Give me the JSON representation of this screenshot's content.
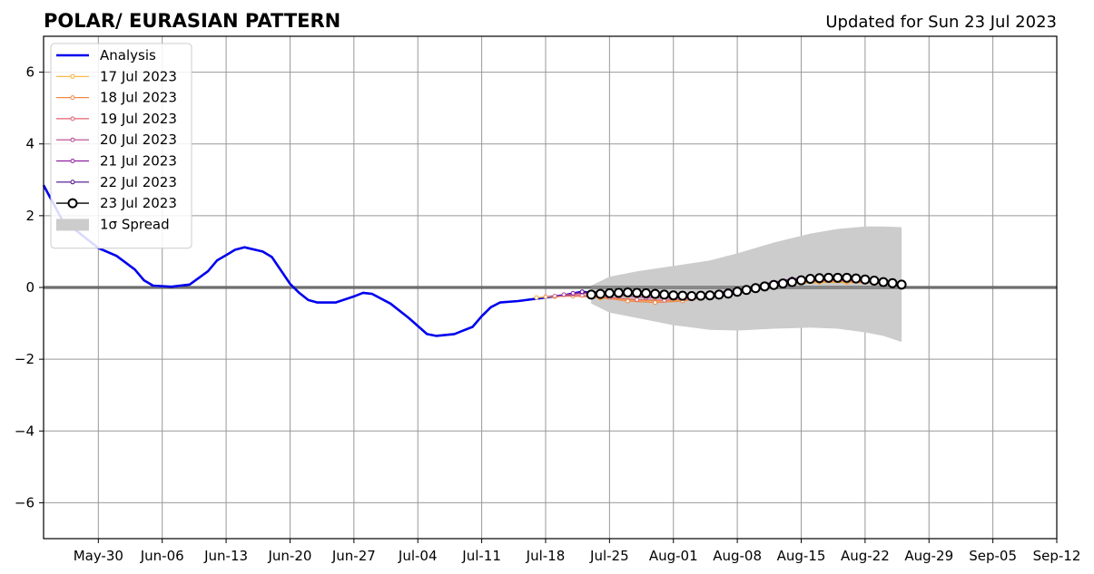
{
  "chart_data": {
    "type": "line",
    "title": "POLAR/ EURASIAN  PATTERN",
    "subtitle": "Updated for Sun 23 Jul 2023",
    "xlabel": "",
    "ylabel": "",
    "x_ticks": [
      "May-30",
      "Jun-06",
      "Jun-13",
      "Jun-20",
      "Jun-27",
      "Jul-04",
      "Jul-11",
      "Jul-18",
      "Jul-25",
      "Aug-01",
      "Aug-08",
      "Aug-15",
      "Aug-22",
      "Aug-29",
      "Sep-05",
      "Sep-12"
    ],
    "y_ticks": [
      -6,
      -4,
      -2,
      0,
      2,
      4,
      6
    ],
    "xlim": [
      "2023-05-24",
      "2023-09-12"
    ],
    "ylim": [
      -7,
      7
    ],
    "grid": true,
    "legend_position": "top-left",
    "series": [
      {
        "name": "Analysis",
        "color": "#0000ee",
        "style": "thick-line",
        "points": [
          [
            "2023-05-24",
            2.85
          ],
          [
            "2023-05-26",
            1.9
          ],
          [
            "2023-05-28",
            1.5
          ],
          [
            "2023-05-30",
            1.1
          ],
          [
            "2023-06-01",
            0.88
          ],
          [
            "2023-06-03",
            0.5
          ],
          [
            "2023-06-04",
            0.2
          ],
          [
            "2023-06-05",
            0.05
          ],
          [
            "2023-06-07",
            0.02
          ],
          [
            "2023-06-09",
            0.08
          ],
          [
            "2023-06-11",
            0.45
          ],
          [
            "2023-06-12",
            0.75
          ],
          [
            "2023-06-14",
            1.05
          ],
          [
            "2023-06-15",
            1.12
          ],
          [
            "2023-06-17",
            1.0
          ],
          [
            "2023-06-18",
            0.85
          ],
          [
            "2023-06-20",
            0.1
          ],
          [
            "2023-06-21",
            -0.15
          ],
          [
            "2023-06-22",
            -0.35
          ],
          [
            "2023-06-23",
            -0.42
          ],
          [
            "2023-06-25",
            -0.42
          ],
          [
            "2023-06-27",
            -0.25
          ],
          [
            "2023-06-28",
            -0.15
          ],
          [
            "2023-06-29",
            -0.18
          ],
          [
            "2023-07-01",
            -0.45
          ],
          [
            "2023-07-03",
            -0.85
          ],
          [
            "2023-07-05",
            -1.3
          ],
          [
            "2023-07-06",
            -1.35
          ],
          [
            "2023-07-08",
            -1.3
          ],
          [
            "2023-07-10",
            -1.1
          ],
          [
            "2023-07-11",
            -0.8
          ],
          [
            "2023-07-12",
            -0.55
          ],
          [
            "2023-07-13",
            -0.42
          ],
          [
            "2023-07-15",
            -0.38
          ],
          [
            "2023-07-18",
            -0.28
          ],
          [
            "2023-07-20",
            -0.22
          ],
          [
            "2023-07-22",
            -0.12
          ],
          [
            "2023-07-23",
            -0.15
          ]
        ]
      },
      {
        "name": "17 Jul 2023",
        "color": "#f5b13c",
        "style": "thin-line-dots",
        "points": [
          [
            "2023-07-17",
            -0.28
          ],
          [
            "2023-07-19",
            -0.26
          ],
          [
            "2023-07-21",
            -0.22
          ],
          [
            "2023-07-24",
            -0.3
          ],
          [
            "2023-07-27",
            -0.35
          ],
          [
            "2023-07-30",
            -0.38
          ],
          [
            "2023-08-02",
            -0.35
          ],
          [
            "2023-08-05",
            -0.25
          ],
          [
            "2023-08-08",
            -0.1
          ],
          [
            "2023-08-11",
            0.02
          ],
          [
            "2023-08-14",
            0.1
          ],
          [
            "2023-08-17",
            0.14
          ],
          [
            "2023-08-20",
            0.14
          ],
          [
            "2023-08-23",
            0.12
          ]
        ]
      },
      {
        "name": "18 Jul 2023",
        "color": "#ee8a4a",
        "style": "thin-line-dots",
        "points": [
          [
            "2023-07-18",
            -0.26
          ],
          [
            "2023-07-21",
            -0.24
          ],
          [
            "2023-07-24",
            -0.28
          ],
          [
            "2023-07-27",
            -0.38
          ],
          [
            "2023-07-30",
            -0.42
          ],
          [
            "2023-08-02",
            -0.38
          ],
          [
            "2023-08-05",
            -0.26
          ],
          [
            "2023-08-08",
            -0.1
          ],
          [
            "2023-08-11",
            0.04
          ],
          [
            "2023-08-14",
            0.12
          ],
          [
            "2023-08-17",
            0.16
          ],
          [
            "2023-08-20",
            0.16
          ],
          [
            "2023-08-23",
            0.12
          ],
          [
            "2023-08-24",
            0.1
          ]
        ]
      },
      {
        "name": "19 Jul 2023",
        "color": "#e06070",
        "style": "thin-line-dots",
        "points": [
          [
            "2023-07-19",
            -0.24
          ],
          [
            "2023-07-22",
            -0.22
          ],
          [
            "2023-07-25",
            -0.28
          ],
          [
            "2023-07-28",
            -0.34
          ],
          [
            "2023-07-31",
            -0.36
          ],
          [
            "2023-08-03",
            -0.32
          ],
          [
            "2023-08-06",
            -0.2
          ],
          [
            "2023-08-09",
            -0.06
          ],
          [
            "2023-08-12",
            0.08
          ],
          [
            "2023-08-15",
            0.16
          ],
          [
            "2023-08-18",
            0.2
          ],
          [
            "2023-08-21",
            0.18
          ],
          [
            "2023-08-24",
            0.12
          ],
          [
            "2023-08-25",
            0.1
          ]
        ]
      },
      {
        "name": "20 Jul 2023",
        "color": "#b8448a",
        "style": "thin-line-dots",
        "points": [
          [
            "2023-07-20",
            -0.2
          ],
          [
            "2023-07-23",
            -0.16
          ],
          [
            "2023-07-26",
            -0.22
          ],
          [
            "2023-07-29",
            -0.28
          ],
          [
            "2023-08-01",
            -0.3
          ],
          [
            "2023-08-04",
            -0.26
          ],
          [
            "2023-08-07",
            -0.16
          ],
          [
            "2023-08-10",
            0.0
          ],
          [
            "2023-08-13",
            0.14
          ],
          [
            "2023-08-16",
            0.22
          ],
          [
            "2023-08-19",
            0.24
          ],
          [
            "2023-08-22",
            0.2
          ],
          [
            "2023-08-25",
            0.12
          ],
          [
            "2023-08-26",
            0.1
          ]
        ]
      },
      {
        "name": "21 Jul 2023",
        "color": "#8e1fa0",
        "style": "thin-line-dots",
        "points": [
          [
            "2023-07-21",
            -0.16
          ],
          [
            "2023-07-24",
            -0.12
          ],
          [
            "2023-07-27",
            -0.16
          ],
          [
            "2023-07-30",
            -0.2
          ],
          [
            "2023-08-02",
            -0.22
          ],
          [
            "2023-08-05",
            -0.18
          ],
          [
            "2023-08-08",
            -0.06
          ],
          [
            "2023-08-11",
            0.1
          ],
          [
            "2023-08-14",
            0.24
          ],
          [
            "2023-08-17",
            0.3
          ],
          [
            "2023-08-20",
            0.3
          ],
          [
            "2023-08-23",
            0.24
          ],
          [
            "2023-08-26",
            0.12
          ]
        ]
      },
      {
        "name": "22 Jul 2023",
        "color": "#4b0c8a",
        "style": "thin-line-dots",
        "points": [
          [
            "2023-07-22",
            -0.12
          ],
          [
            "2023-07-25",
            -0.14
          ],
          [
            "2023-07-28",
            -0.16
          ],
          [
            "2023-07-31",
            -0.2
          ],
          [
            "2023-08-03",
            -0.22
          ],
          [
            "2023-08-06",
            -0.18
          ],
          [
            "2023-08-09",
            -0.06
          ],
          [
            "2023-08-12",
            0.1
          ],
          [
            "2023-08-15",
            0.22
          ],
          [
            "2023-08-18",
            0.28
          ],
          [
            "2023-08-21",
            0.28
          ],
          [
            "2023-08-24",
            0.2
          ],
          [
            "2023-08-26",
            0.1
          ]
        ]
      },
      {
        "name": "23 Jul 2023",
        "color": "#000000",
        "style": "open-circles",
        "points": [
          [
            "2023-07-23",
            -0.2
          ],
          [
            "2023-07-24",
            -0.18
          ],
          [
            "2023-07-25",
            -0.16
          ],
          [
            "2023-07-26",
            -0.15
          ],
          [
            "2023-07-27",
            -0.14
          ],
          [
            "2023-07-28",
            -0.15
          ],
          [
            "2023-07-29",
            -0.16
          ],
          [
            "2023-07-30",
            -0.18
          ],
          [
            "2023-07-31",
            -0.2
          ],
          [
            "2023-08-01",
            -0.22
          ],
          [
            "2023-08-02",
            -0.23
          ],
          [
            "2023-08-03",
            -0.24
          ],
          [
            "2023-08-04",
            -0.23
          ],
          [
            "2023-08-05",
            -0.22
          ],
          [
            "2023-08-06",
            -0.2
          ],
          [
            "2023-08-07",
            -0.17
          ],
          [
            "2023-08-08",
            -0.12
          ],
          [
            "2023-08-09",
            -0.07
          ],
          [
            "2023-08-10",
            -0.02
          ],
          [
            "2023-08-11",
            0.03
          ],
          [
            "2023-08-12",
            0.07
          ],
          [
            "2023-08-13",
            0.11
          ],
          [
            "2023-08-14",
            0.15
          ],
          [
            "2023-08-15",
            0.2
          ],
          [
            "2023-08-16",
            0.24
          ],
          [
            "2023-08-17",
            0.26
          ],
          [
            "2023-08-18",
            0.27
          ],
          [
            "2023-08-19",
            0.27
          ],
          [
            "2023-08-20",
            0.27
          ],
          [
            "2023-08-21",
            0.25
          ],
          [
            "2023-08-22",
            0.22
          ],
          [
            "2023-08-23",
            0.19
          ],
          [
            "2023-08-24",
            0.15
          ],
          [
            "2023-08-25",
            0.12
          ],
          [
            "2023-08-26",
            0.08
          ]
        ]
      }
    ],
    "spread": {
      "name": "1σ Spread",
      "color": "#cccccc",
      "points": [
        [
          "2023-07-23",
          -0.45,
          0.05
        ],
        [
          "2023-07-25",
          -0.7,
          0.3
        ],
        [
          "2023-07-28",
          -0.85,
          0.45
        ],
        [
          "2023-08-01",
          -1.05,
          0.6
        ],
        [
          "2023-08-05",
          -1.18,
          0.75
        ],
        [
          "2023-08-08",
          -1.2,
          0.95
        ],
        [
          "2023-08-12",
          -1.15,
          1.25
        ],
        [
          "2023-08-16",
          -1.12,
          1.5
        ],
        [
          "2023-08-19",
          -1.15,
          1.63
        ],
        [
          "2023-08-22",
          -1.25,
          1.7
        ],
        [
          "2023-08-24",
          -1.35,
          1.7
        ],
        [
          "2023-08-26",
          -1.52,
          1.68
        ]
      ]
    },
    "zero_line": 0
  }
}
